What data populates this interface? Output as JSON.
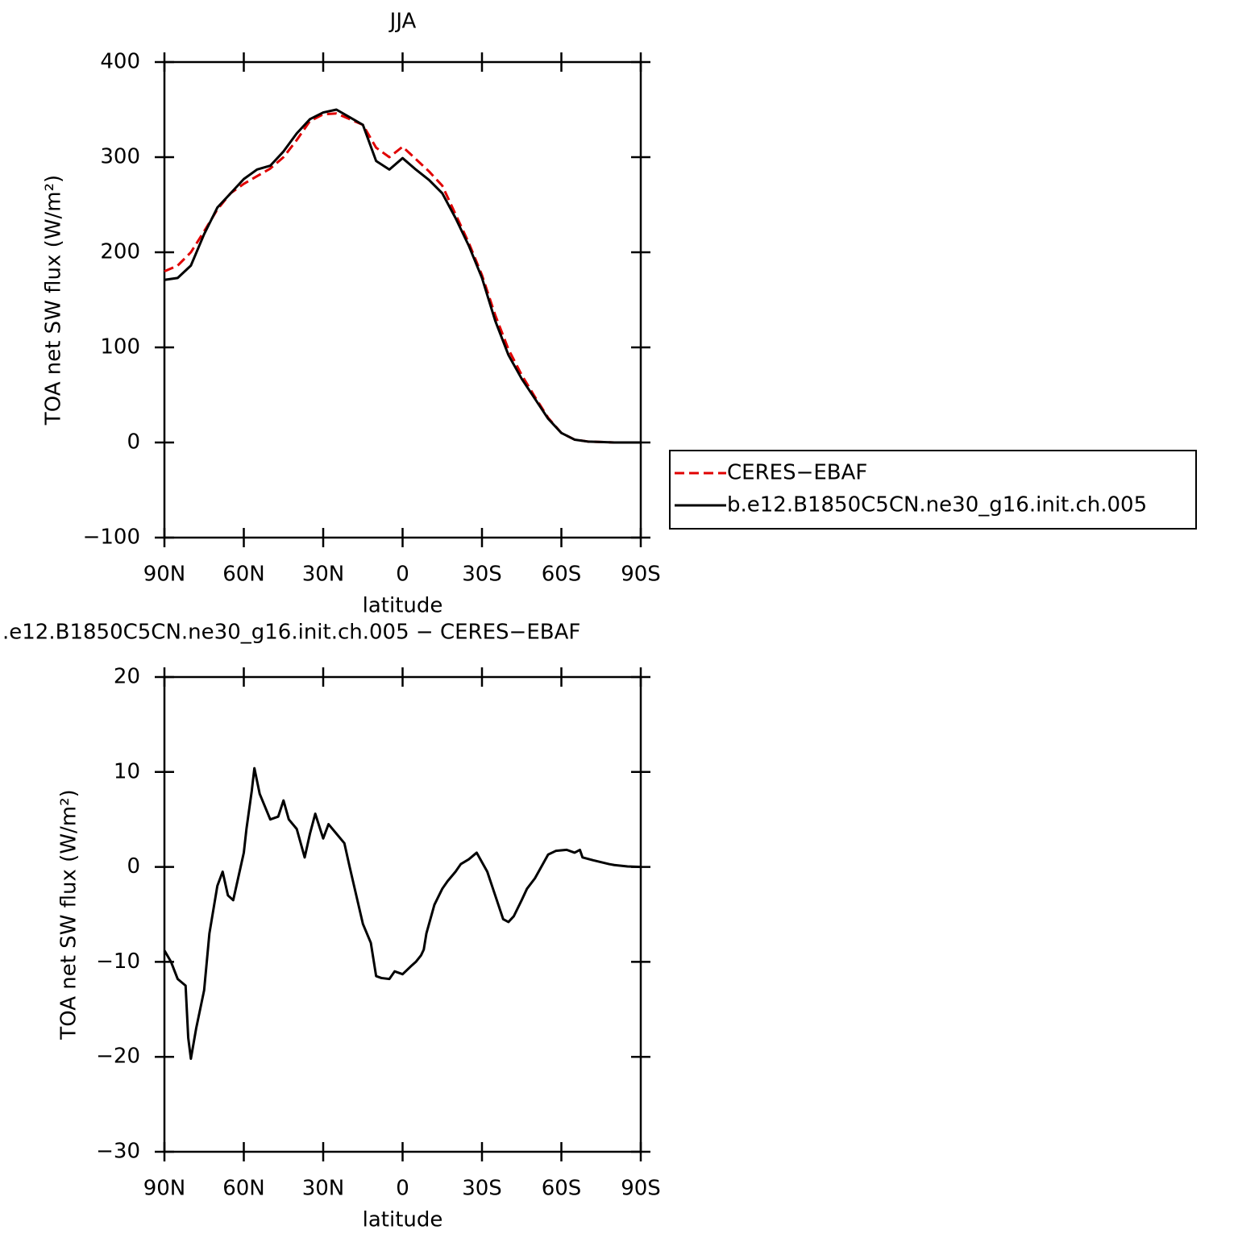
{
  "chart_data": [
    {
      "type": "line",
      "title": "JJA",
      "xlabel": "latitude",
      "ylabel": "TOA net SW flux (W/m²)",
      "x": [
        90,
        85,
        80,
        75,
        70,
        65,
        60,
        55,
        50,
        45,
        40,
        35,
        30,
        25,
        20,
        15,
        10,
        5,
        0,
        -5,
        -10,
        -15,
        -20,
        -25,
        -30,
        -35,
        -40,
        -45,
        -50,
        -55,
        -60,
        -65,
        -70,
        -75,
        -80,
        -85,
        -90
      ],
      "series": [
        {
          "name": "CERES−EBAF",
          "color": "#e00000",
          "style": "dashed",
          "values": [
            180,
            186,
            200,
            222,
            245,
            262,
            272,
            280,
            288,
            300,
            318,
            338,
            345,
            346,
            340,
            334,
            310,
            300,
            311,
            298,
            285,
            270,
            240,
            210,
            176,
            134,
            98,
            71,
            48,
            26,
            10,
            3,
            1,
            0.5,
            0,
            0,
            0
          ]
        },
        {
          "name": "b.e12.B1850C5CN.ne30_g16.init.ch.005",
          "color": "#000000",
          "style": "solid",
          "values": [
            171,
            173,
            186,
            219,
            247,
            262,
            277,
            287,
            291,
            306,
            325,
            340,
            347,
            350,
            342,
            334,
            296,
            287,
            299,
            287,
            276,
            262,
            236,
            207,
            173,
            128,
            92,
            67,
            46,
            25,
            10,
            3,
            1,
            0.5,
            0,
            0,
            0
          ]
        }
      ],
      "xlim": [
        90,
        -90
      ],
      "xticks": [
        {
          "value": 90,
          "label": "90N"
        },
        {
          "value": 60,
          "label": "60N"
        },
        {
          "value": 30,
          "label": "30N"
        },
        0,
        {
          "value": -30,
          "label": "30S"
        },
        {
          "value": -60,
          "label": "60S"
        },
        {
          "value": -90,
          "label": "90S"
        }
      ],
      "ylim": [
        -100,
        400
      ],
      "yticks": [
        {
          "value": -100,
          "label": "−100"
        },
        0,
        100,
        200,
        300,
        400
      ],
      "legend": "right"
    },
    {
      "type": "line",
      "title": ".e12.B1850C5CN.ne30_g16.init.ch.005 − CERES−EBAF",
      "xlabel": "latitude",
      "ylabel": "TOA net SW flux (W/m²)",
      "x": [
        90,
        87.5,
        85,
        82,
        81,
        80,
        78,
        75,
        73,
        70,
        68,
        66,
        64,
        62,
        60,
        59,
        57,
        56,
        54,
        50,
        47,
        45,
        43,
        40,
        37,
        35,
        33,
        30,
        28,
        25,
        22,
        20,
        15,
        12,
        10,
        8,
        5,
        3,
        0,
        -3,
        -5,
        -7,
        -8,
        -9,
        -12,
        -15,
        -17,
        -20,
        -22,
        -25,
        -28,
        -30,
        -32,
        -35,
        -38,
        -40,
        -42,
        -45,
        -47,
        -50,
        -55,
        -58,
        -62,
        -65,
        -67,
        -68,
        -72,
        -75,
        -78,
        -80,
        -85,
        -90
      ],
      "series": [
        {
          "color": "#000000",
          "style": "solid",
          "values": [
            -8.8,
            -10,
            -11.8,
            -12.5,
            -18,
            -20.2,
            -17,
            -13,
            -7,
            -2,
            -0.5,
            -3,
            -3.5,
            -1,
            1.5,
            4,
            8,
            10.4,
            7.7,
            5,
            5.3,
            7,
            5,
            4,
            1,
            3.5,
            5.6,
            3,
            4.5,
            3.5,
            2.5,
            0,
            -6,
            -8,
            -11.5,
            -11.7,
            -11.8,
            -11,
            -11.3,
            -10.5,
            -10,
            -9.3,
            -8.7,
            -7,
            -4,
            -2.3,
            -1.5,
            -0.5,
            0.3,
            0.8,
            1.5,
            0.5,
            -0.5,
            -3,
            -5.5,
            -5.8,
            -5.2,
            -3.5,
            -2.3,
            -1.2,
            1.3,
            1.7,
            1.8,
            1.5,
            1.8,
            1,
            0.7,
            0.5,
            0.3,
            0.2,
            0.05,
            0
          ]
        }
      ],
      "xlim": [
        90,
        -90
      ],
      "xticks": [
        {
          "value": 90,
          "label": "90N"
        },
        {
          "value": 60,
          "label": "60N"
        },
        {
          "value": 30,
          "label": "30N"
        },
        0,
        {
          "value": -30,
          "label": "30S"
        },
        {
          "value": -60,
          "label": "60S"
        },
        {
          "value": -90,
          "label": "90S"
        }
      ],
      "ylim": [
        -30,
        20
      ],
      "yticks": [
        {
          "value": -30,
          "label": "−30"
        },
        {
          "value": -20,
          "label": "−20"
        },
        {
          "value": -10,
          "label": "−10"
        },
        0,
        10,
        20
      ]
    }
  ]
}
